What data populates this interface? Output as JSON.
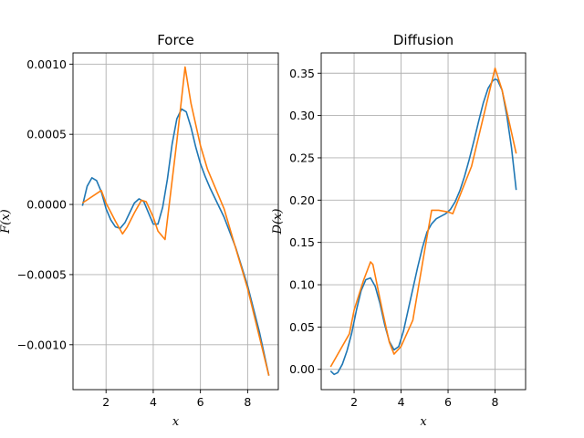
{
  "chart_data": [
    {
      "type": "line",
      "title": "Force",
      "xlabel": "x",
      "ylabel": "F(x)",
      "xlim": [
        0.6,
        9.3
      ],
      "ylim": [
        -0.00132,
        0.00108
      ],
      "xticks": [
        2,
        4,
        6,
        8
      ],
      "xtick_labels": [
        "2",
        "4",
        "6",
        "8"
      ],
      "yticks": [
        -0.001,
        -0.0005,
        0.0,
        0.0005,
        0.001
      ],
      "ytick_labels": [
        "−0.0010",
        "−0.0005",
        "0.0000",
        "0.0005",
        "0.0010"
      ],
      "grid": true,
      "series": [
        {
          "color": "#1f77b4",
          "x": [
            1.0,
            1.2,
            1.4,
            1.6,
            1.8,
            2.0,
            2.2,
            2.4,
            2.6,
            2.8,
            3.0,
            3.2,
            3.4,
            3.6,
            3.8,
            4.0,
            4.2,
            4.4,
            4.6,
            4.8,
            5.0,
            5.2,
            5.4,
            5.6,
            5.8,
            6.0,
            6.2,
            6.4,
            6.6,
            6.8,
            7.0,
            7.5,
            8.0,
            8.5,
            8.9
          ],
          "y": [
            -1e-05,
            0.00013,
            0.00019,
            0.00017,
            9e-05,
            -3e-05,
            -0.00011,
            -0.00016,
            -0.00017,
            -0.00013,
            -6e-05,
            1e-05,
            4e-05,
            2e-05,
            -6e-05,
            -0.00014,
            -0.00014,
            -2e-05,
            0.00018,
            0.00043,
            0.00061,
            0.00068,
            0.00066,
            0.00055,
            0.00041,
            0.00029,
            0.0002,
            0.00012,
            5e-05,
            -2e-05,
            -9e-05,
            -0.00031,
            -0.00058,
            -0.00091,
            -0.00122
          ]
        },
        {
          "color": "#ff7f0e",
          "x": [
            1.0,
            1.8,
            2.0,
            2.4,
            2.7,
            2.9,
            3.2,
            3.5,
            3.7,
            4.0,
            4.2,
            4.5,
            5.0,
            5.35,
            5.6,
            6.0,
            6.3,
            7.0,
            8.0,
            8.9
          ],
          "y": [
            1e-05,
            0.0001,
            1e-05,
            -0.00012,
            -0.00021,
            -0.00016,
            -6e-05,
            3e-05,
            2e-05,
            -9e-05,
            -0.00019,
            -0.00025,
            0.00045,
            0.00098,
            0.00072,
            0.00042,
            0.00025,
            -3e-05,
            -0.0006,
            -0.00122
          ]
        }
      ]
    },
    {
      "type": "line",
      "title": "Diffusion",
      "xlabel": "x",
      "ylabel": "D(x)",
      "xlim": [
        0.6,
        9.3
      ],
      "ylim": [
        -0.024,
        0.374
      ],
      "xticks": [
        2,
        4,
        6,
        8
      ],
      "xtick_labels": [
        "2",
        "4",
        "6",
        "8"
      ],
      "yticks": [
        0.0,
        0.05,
        0.1,
        0.15,
        0.2,
        0.25,
        0.3,
        0.35
      ],
      "ytick_labels": [
        "0.00",
        "0.05",
        "0.10",
        "0.15",
        "0.20",
        "0.25",
        "0.30",
        "0.35"
      ],
      "grid": true,
      "series": [
        {
          "color": "#1f77b4",
          "x": [
            1.0,
            1.15,
            1.3,
            1.5,
            1.7,
            1.9,
            2.1,
            2.3,
            2.5,
            2.7,
            2.9,
            3.1,
            3.3,
            3.5,
            3.7,
            3.9,
            4.1,
            4.3,
            4.5,
            4.7,
            4.9,
            5.1,
            5.3,
            5.5,
            5.7,
            5.9,
            6.1,
            6.3,
            6.5,
            6.7,
            6.9,
            7.1,
            7.3,
            7.5,
            7.7,
            7.9,
            8.0,
            8.1,
            8.3,
            8.5,
            8.7,
            8.9
          ],
          "y": [
            -0.002,
            -0.006,
            -0.004,
            0.006,
            0.022,
            0.043,
            0.07,
            0.093,
            0.106,
            0.108,
            0.098,
            0.078,
            0.053,
            0.033,
            0.023,
            0.027,
            0.045,
            0.07,
            0.095,
            0.12,
            0.143,
            0.162,
            0.172,
            0.178,
            0.181,
            0.184,
            0.189,
            0.198,
            0.211,
            0.228,
            0.248,
            0.27,
            0.293,
            0.315,
            0.332,
            0.341,
            0.343,
            0.342,
            0.33,
            0.3,
            0.262,
            0.212
          ]
        },
        {
          "color": "#ff7f0e",
          "x": [
            1.0,
            1.8,
            2.0,
            2.4,
            2.7,
            2.8,
            3.2,
            3.5,
            3.7,
            4.0,
            4.5,
            5.0,
            5.3,
            5.6,
            6.0,
            6.2,
            7.0,
            8.0,
            8.3,
            8.9
          ],
          "y": [
            0.003,
            0.042,
            0.07,
            0.105,
            0.127,
            0.124,
            0.07,
            0.032,
            0.018,
            0.027,
            0.058,
            0.14,
            0.188,
            0.188,
            0.186,
            0.184,
            0.24,
            0.356,
            0.33,
            0.255
          ]
        }
      ]
    }
  ]
}
